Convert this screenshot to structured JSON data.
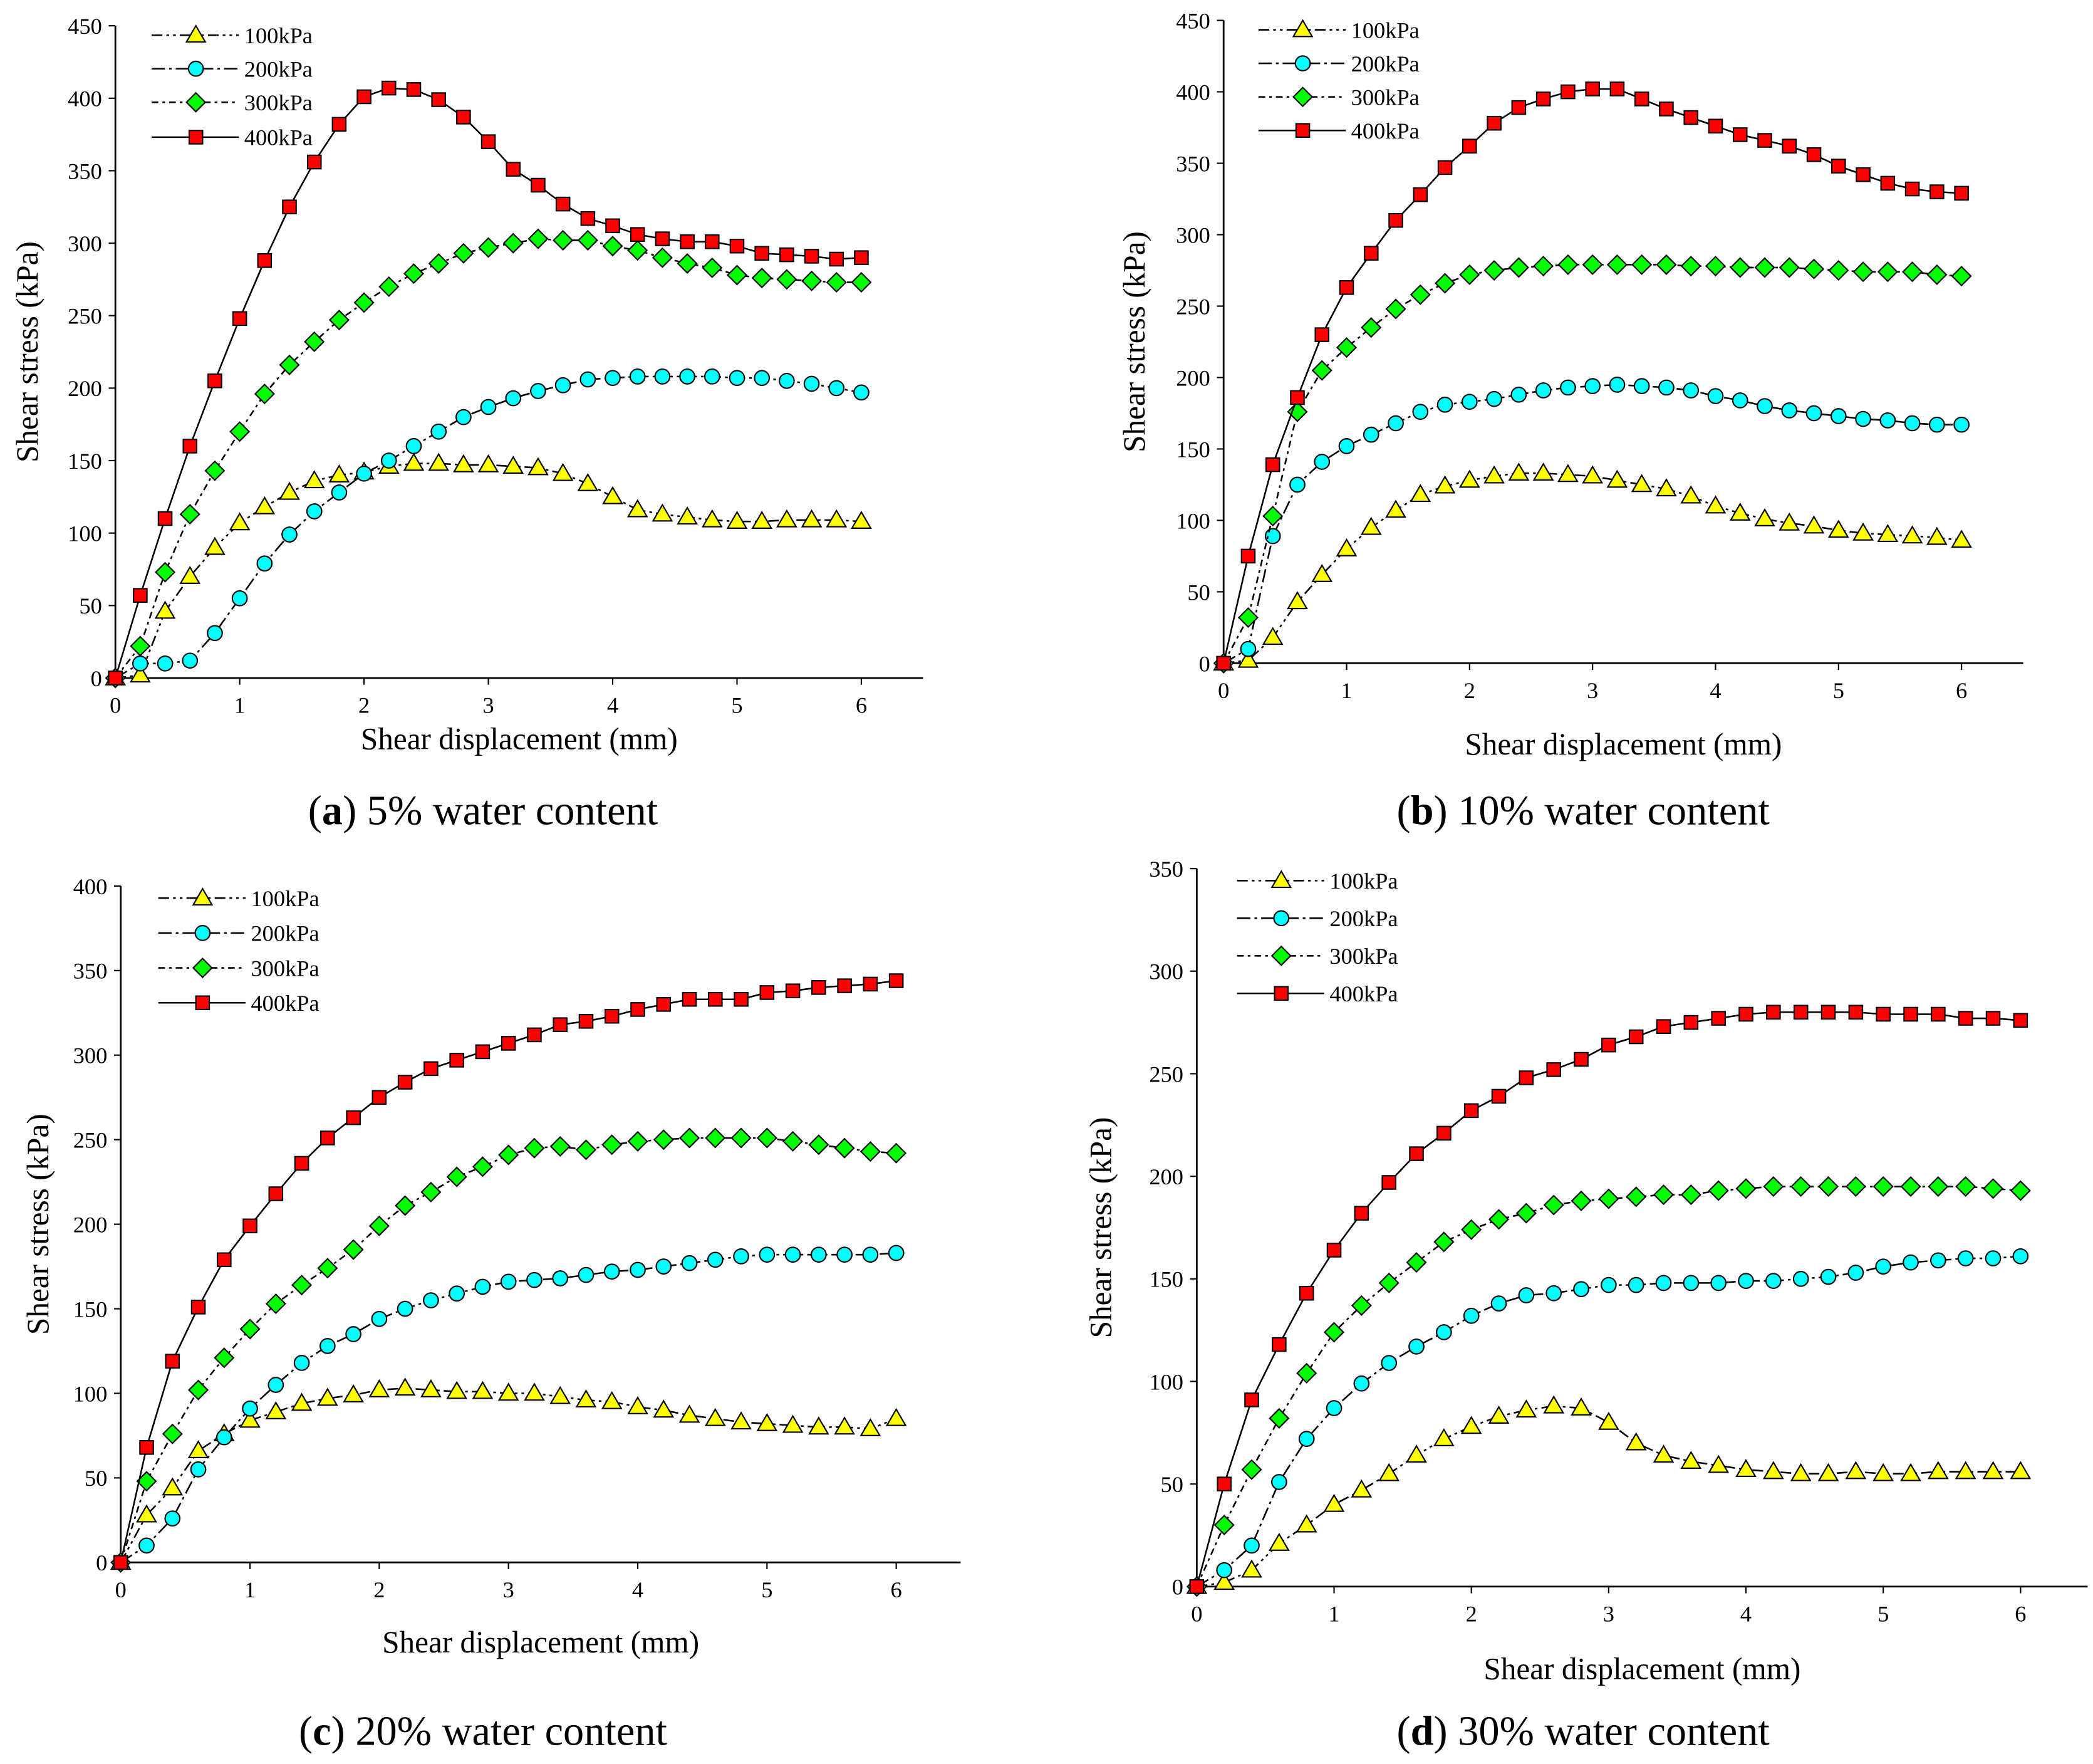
{
  "colors": {
    "100kPa": "#ffff00",
    "200kPa": "#00ffff",
    "300kPa": "#00ff00",
    "400kPa": "#ff0000",
    "stroke": "#000000"
  },
  "chart_data": [
    {
      "type": "line",
      "panel": "a",
      "caption_letter": "a",
      "caption_text": "5% water content",
      "xlabel": "Shear displacement (mm)",
      "ylabel": "Shear stress (kPa)",
      "xlim": [
        0,
        6.5
      ],
      "ylim": [
        0,
        450
      ],
      "xticks": [
        0,
        1,
        2,
        3,
        4,
        5,
        6
      ],
      "yticks": [
        0,
        50,
        100,
        150,
        200,
        250,
        300,
        350,
        400,
        450
      ],
      "legend_position": "top-left",
      "x": [
        0,
        0.2,
        0.4,
        0.6,
        0.8,
        1,
        1.2,
        1.4,
        1.6,
        1.8,
        2,
        2.2,
        2.4,
        2.6,
        2.8,
        3,
        3.2,
        3.4,
        3.6,
        3.8,
        4,
        4.2,
        4.4,
        4.6,
        4.8,
        5,
        5.2,
        5.4,
        5.6,
        5.8,
        6
      ],
      "series": [
        {
          "name": "100kPa",
          "marker": "triangle",
          "values": [
            0,
            2,
            46,
            70,
            90,
            107,
            118,
            128,
            136,
            140,
            142,
            146,
            148,
            148,
            147,
            147,
            146,
            145,
            141,
            134,
            125,
            116,
            113,
            111,
            109,
            108,
            108,
            109,
            109,
            109,
            108
          ]
        },
        {
          "name": "200kPa",
          "marker": "circle",
          "values": [
            0,
            10,
            10,
            12,
            31,
            55,
            79,
            99,
            115,
            128,
            141,
            150,
            160,
            170,
            180,
            187,
            193,
            198,
            202,
            206,
            207,
            208,
            208,
            208,
            208,
            207,
            207,
            205,
            203,
            200,
            197
          ]
        },
        {
          "name": "300kPa",
          "marker": "diamond",
          "values": [
            0,
            22,
            73,
            113,
            143,
            170,
            196,
            216,
            232,
            247,
            259,
            270,
            279,
            286,
            293,
            297,
            300,
            303,
            302,
            302,
            298,
            295,
            290,
            286,
            283,
            278,
            276,
            275,
            274,
            273,
            273
          ]
        },
        {
          "name": "400kPa",
          "marker": "square",
          "values": [
            0,
            57,
            110,
            160,
            205,
            248,
            288,
            325,
            356,
            382,
            401,
            407,
            406,
            399,
            387,
            370,
            351,
            340,
            327,
            317,
            312,
            306,
            303,
            301,
            301,
            298,
            293,
            292,
            291,
            289,
            290
          ]
        }
      ]
    },
    {
      "type": "line",
      "panel": "b",
      "caption_letter": "b",
      "caption_text": "10% water content",
      "xlabel": "Shear displacement (mm)",
      "ylabel": "Shear stress (kPa)",
      "xlim": [
        0,
        6.5
      ],
      "ylim": [
        0,
        450
      ],
      "xticks": [
        0,
        1,
        2,
        3,
        4,
        5,
        6
      ],
      "yticks": [
        0,
        50,
        100,
        150,
        200,
        250,
        300,
        350,
        400,
        450
      ],
      "legend_position": "top-left",
      "x": [
        0,
        0.2,
        0.4,
        0.6,
        0.8,
        1,
        1.2,
        1.4,
        1.6,
        1.8,
        2,
        2.2,
        2.4,
        2.6,
        2.8,
        3,
        3.2,
        3.4,
        3.6,
        3.8,
        4,
        4.2,
        4.4,
        4.6,
        4.8,
        5,
        5.2,
        5.4,
        5.6,
        5.8,
        6
      ],
      "series": [
        {
          "name": "100kPa",
          "marker": "triangle",
          "values": [
            0,
            2,
            18,
            43,
            62,
            80,
            95,
            107,
            118,
            124,
            128,
            131,
            133,
            133,
            132,
            131,
            128,
            125,
            122,
            117,
            110,
            105,
            101,
            98,
            96,
            93,
            91,
            90,
            89,
            88,
            86
          ]
        },
        {
          "name": "200kPa",
          "marker": "circle",
          "values": [
            0,
            10,
            89,
            125,
            141,
            152,
            160,
            168,
            176,
            181,
            183,
            185,
            188,
            191,
            193,
            194,
            195,
            194,
            193,
            191,
            187,
            184,
            180,
            177,
            175,
            173,
            171,
            170,
            168,
            167,
            167
          ]
        },
        {
          "name": "300kPa",
          "marker": "diamond",
          "values": [
            0,
            32,
            103,
            176,
            205,
            221,
            235,
            248,
            258,
            266,
            272,
            275,
            277,
            278,
            279,
            279,
            279,
            279,
            279,
            278,
            278,
            277,
            277,
            277,
            276,
            275,
            274,
            274,
            274,
            272,
            271
          ]
        },
        {
          "name": "400kPa",
          "marker": "square",
          "values": [
            0,
            75,
            139,
            186,
            230,
            263,
            287,
            310,
            328,
            347,
            362,
            378,
            389,
            395,
            400,
            402,
            402,
            395,
            388,
            382,
            376,
            370,
            366,
            362,
            356,
            348,
            342,
            336,
            332,
            330,
            329
          ]
        }
      ]
    },
    {
      "type": "line",
      "panel": "c",
      "caption_letter": "c",
      "caption_text": "20% water content",
      "xlabel": "Shear displacement (mm)",
      "ylabel": "Shear stress (kPa)",
      "xlim": [
        0,
        6.5
      ],
      "ylim": [
        0,
        400
      ],
      "xticks": [
        0,
        1,
        2,
        3,
        4,
        5,
        6
      ],
      "yticks": [
        0,
        50,
        100,
        150,
        200,
        250,
        300,
        350,
        400
      ],
      "legend_position": "top-left",
      "x": [
        0,
        0.2,
        0.4,
        0.6,
        0.8,
        1,
        1.2,
        1.4,
        1.6,
        1.8,
        2,
        2.2,
        2.4,
        2.6,
        2.8,
        3,
        3.2,
        3.4,
        3.6,
        3.8,
        4,
        4.2,
        4.4,
        4.6,
        4.8,
        5,
        5.2,
        5.4,
        5.6,
        5.8,
        6
      ],
      "series": [
        {
          "name": "100kPa",
          "marker": "triangle",
          "values": [
            0,
            28,
            44,
            66,
            76,
            84,
            89,
            94,
            97,
            99,
            102,
            103,
            102,
            101,
            101,
            100,
            100,
            98,
            96,
            95,
            92,
            90,
            87,
            85,
            83,
            82,
            81,
            80,
            80,
            79,
            85
          ]
        },
        {
          "name": "200kPa",
          "marker": "circle",
          "values": [
            0,
            10,
            26,
            55,
            74,
            91,
            105,
            118,
            128,
            135,
            144,
            150,
            155,
            159,
            163,
            166,
            167,
            168,
            170,
            172,
            173,
            175,
            177,
            179,
            181,
            182,
            182,
            182,
            182,
            182,
            183
          ]
        },
        {
          "name": "300kPa",
          "marker": "diamond",
          "values": [
            0,
            48,
            76,
            102,
            121,
            138,
            153,
            164,
            174,
            185,
            199,
            211,
            219,
            228,
            234,
            241,
            245,
            246,
            244,
            247,
            249,
            250,
            251,
            251,
            251,
            251,
            249,
            247,
            245,
            243,
            242
          ]
        },
        {
          "name": "400kPa",
          "marker": "square",
          "values": [
            0,
            68,
            119,
            151,
            179,
            199,
            218,
            236,
            251,
            263,
            275,
            284,
            292,
            297,
            302,
            307,
            312,
            318,
            320,
            323,
            327,
            330,
            333,
            333,
            333,
            337,
            338,
            340,
            341,
            342,
            344
          ]
        }
      ]
    },
    {
      "type": "line",
      "panel": "d",
      "caption_letter": "d",
      "caption_text": "30% water content",
      "xlabel": "Shear displacement (mm)",
      "ylabel": "Shear stress (kPa)",
      "xlim": [
        0,
        6.5
      ],
      "ylim": [
        0,
        350
      ],
      "xticks": [
        0,
        1,
        2,
        3,
        4,
        5,
        6
      ],
      "yticks": [
        0,
        50,
        100,
        150,
        200,
        250,
        300,
        350
      ],
      "legend_position": "top-left",
      "x": [
        0,
        0.2,
        0.4,
        0.6,
        0.8,
        1,
        1.2,
        1.4,
        1.6,
        1.8,
        2,
        2.2,
        2.4,
        2.6,
        2.8,
        3,
        3.2,
        3.4,
        3.6,
        3.8,
        4,
        4.2,
        4.4,
        4.6,
        4.8,
        5,
        5.2,
        5.4,
        5.6,
        5.8,
        6
      ],
      "series": [
        {
          "name": "100kPa",
          "marker": "triangle",
          "values": [
            0,
            2,
            8,
            21,
            30,
            40,
            47,
            55,
            64,
            72,
            78,
            83,
            86,
            88,
            87,
            80,
            70,
            64,
            61,
            59,
            57,
            56,
            55,
            55,
            56,
            55,
            55,
            56,
            56,
            56,
            56
          ]
        },
        {
          "name": "200kPa",
          "marker": "circle",
          "values": [
            0,
            8,
            20,
            51,
            72,
            87,
            99,
            109,
            117,
            124,
            132,
            138,
            142,
            143,
            145,
            147,
            147,
            148,
            148,
            148,
            149,
            149,
            150,
            151,
            153,
            156,
            158,
            159,
            160,
            160,
            161
          ]
        },
        {
          "name": "300kPa",
          "marker": "diamond",
          "values": [
            0,
            30,
            57,
            82,
            104,
            124,
            137,
            148,
            158,
            168,
            174,
            179,
            182,
            186,
            188,
            189,
            190,
            191,
            191,
            193,
            194,
            195,
            195,
            195,
            195,
            195,
            195,
            195,
            195,
            194,
            193
          ]
        },
        {
          "name": "400kPa",
          "marker": "square",
          "values": [
            0,
            50,
            91,
            118,
            143,
            164,
            182,
            197,
            211,
            221,
            232,
            239,
            248,
            252,
            257,
            264,
            268,
            273,
            275,
            277,
            279,
            280,
            280,
            280,
            280,
            279,
            279,
            279,
            277,
            277,
            276
          ]
        }
      ]
    }
  ]
}
